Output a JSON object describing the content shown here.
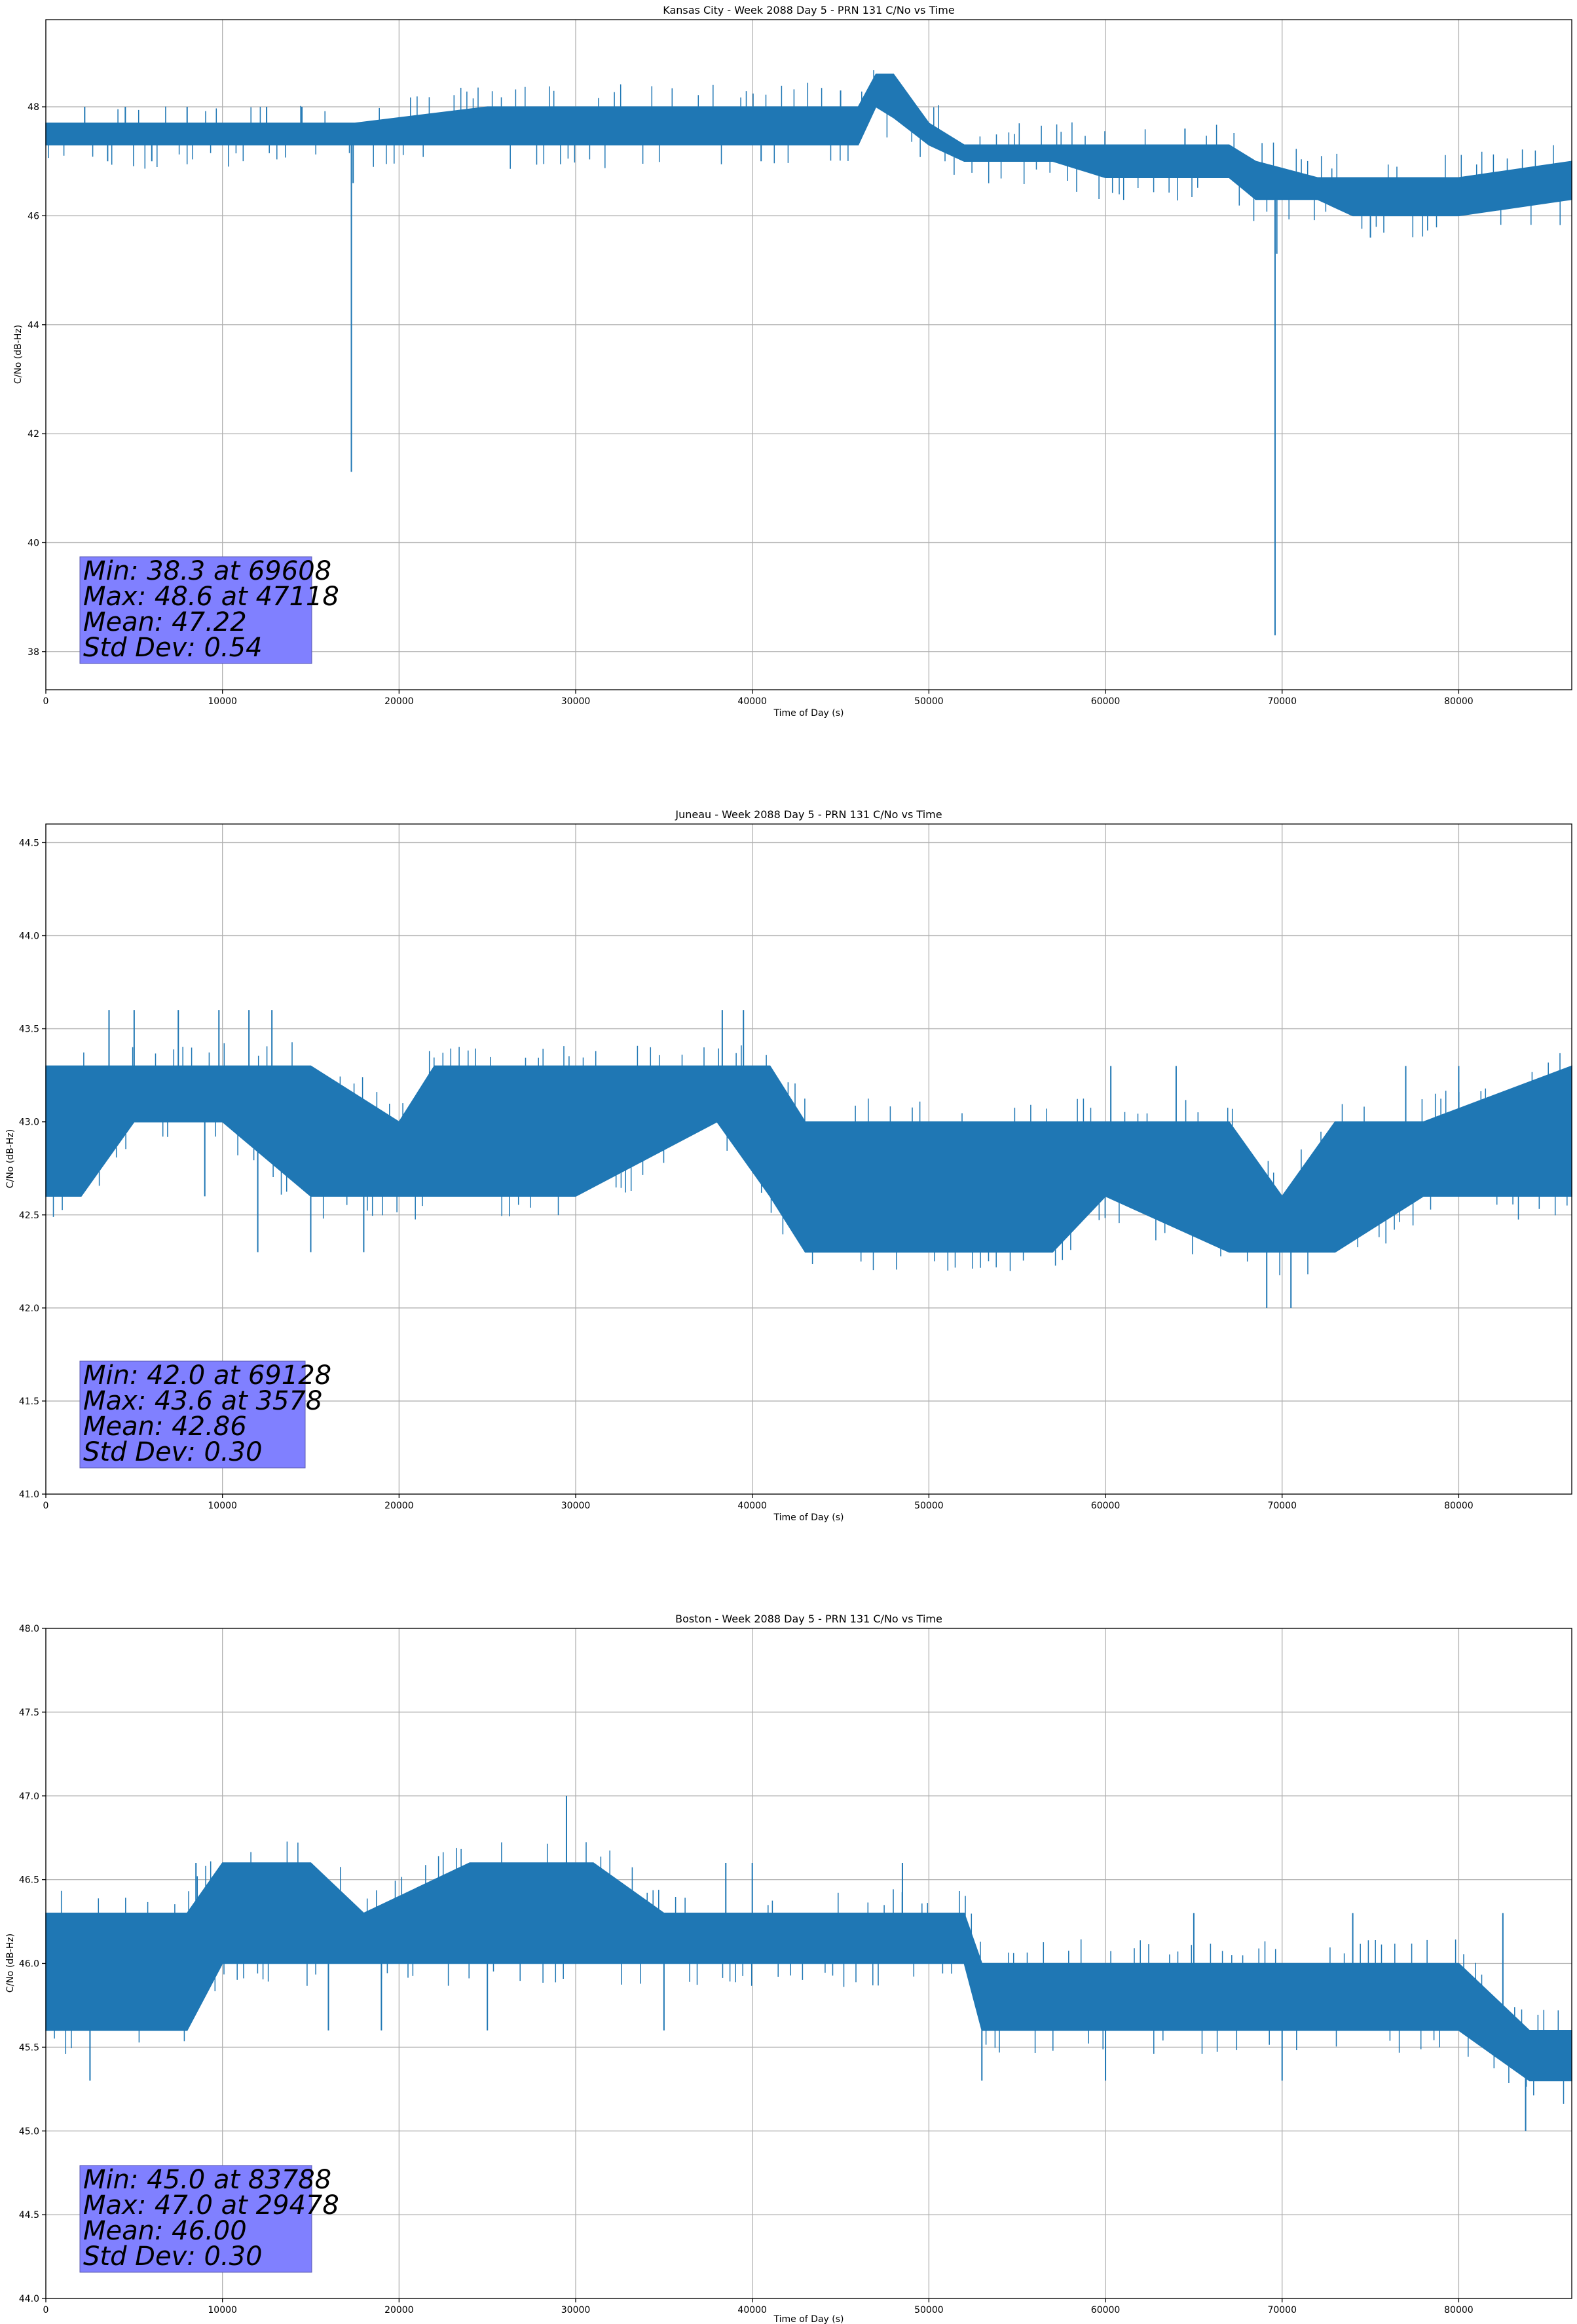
{
  "colors": {
    "series": "#1f77b4",
    "stats_box": "#8080ff",
    "grid": "#b0b0b0"
  },
  "chart_data": [
    {
      "type": "line",
      "title": "Kansas City - Week 2088 Day 5 - PRN 131 C/No vs Time",
      "xlabel": "Time of Day (s)",
      "ylabel": "C/No (dB-Hz)",
      "xlim": [
        0,
        86400
      ],
      "ylim": [
        37.3,
        49.6
      ],
      "xticks": [
        0,
        10000,
        20000,
        30000,
        40000,
        50000,
        60000,
        70000,
        80000
      ],
      "yticks": [
        38,
        40,
        42,
        44,
        46,
        48
      ],
      "ytick_labels": [
        "38",
        "40",
        "42",
        "44",
        "46",
        "48"
      ],
      "grid": true,
      "band": {
        "x": [
          0,
          17000,
          17500,
          25000,
          30000,
          40000,
          44000,
          46000,
          47000,
          48000,
          50000,
          52000,
          57000,
          60000,
          65000,
          67000,
          68500,
          72000,
          74000,
          80000,
          86400
        ],
        "low": [
          47.3,
          47.3,
          47.3,
          47.3,
          47.3,
          47.3,
          47.3,
          47.3,
          48.0,
          47.8,
          47.3,
          47.0,
          47.0,
          46.7,
          46.7,
          46.7,
          46.3,
          46.3,
          46.0,
          46.0,
          46.3
        ],
        "high": [
          47.7,
          47.7,
          47.7,
          48.0,
          48.0,
          48.0,
          48.0,
          48.0,
          48.6,
          48.6,
          47.7,
          47.3,
          47.3,
          47.3,
          47.3,
          47.3,
          47.0,
          46.7,
          46.7,
          46.7,
          47.0
        ]
      },
      "spikes_up": [
        [
          2200,
          48.0
        ],
        [
          4500,
          48.0
        ],
        [
          8000,
          48.0
        ],
        [
          12500,
          48.0
        ],
        [
          14500,
          48.0
        ],
        [
          45000,
          48.3
        ],
        [
          64500,
          47.6
        ]
      ],
      "spikes_down": [
        [
          3500,
          47.0
        ],
        [
          6000,
          47.0
        ],
        [
          17300,
          41.3
        ],
        [
          17400,
          46.6
        ],
        [
          40500,
          47.0
        ],
        [
          69600,
          38.3
        ],
        [
          69700,
          45.3
        ],
        [
          75000,
          45.6
        ]
      ],
      "stats": [
        "Min: 38.3 at 69608",
        "Max: 48.6 at 47118",
        "Mean: 47.22",
        "Std Dev: 0.54"
      ]
    },
    {
      "type": "line",
      "title": "Juneau - Week 2088 Day 5 - PRN 131 C/No vs Time",
      "xlabel": "Time of Day (s)",
      "ylabel": "C/No (dB-Hz)",
      "xlim": [
        0,
        86400
      ],
      "ylim": [
        41.0,
        44.6
      ],
      "xticks": [
        0,
        10000,
        20000,
        30000,
        40000,
        50000,
        60000,
        70000,
        80000
      ],
      "yticks": [
        41.0,
        41.5,
        42.0,
        42.5,
        43.0,
        43.5,
        44.0,
        44.5
      ],
      "ytick_labels": [
        "41.0",
        "41.5",
        "42.0",
        "42.5",
        "43.0",
        "43.5",
        "44.0",
        "44.5"
      ],
      "grid": true,
      "band": {
        "x": [
          0,
          2000,
          5000,
          10000,
          15000,
          20000,
          22000,
          30000,
          38000,
          41000,
          43000,
          45000,
          50000,
          57000,
          60000,
          67000,
          70000,
          73000,
          78000,
          86400
        ],
        "low": [
          42.6,
          42.6,
          43.0,
          43.0,
          42.6,
          42.6,
          42.6,
          42.6,
          43.0,
          42.6,
          42.3,
          42.3,
          42.3,
          42.3,
          42.6,
          42.3,
          42.3,
          42.3,
          42.6,
          42.6
        ],
        "high": [
          43.3,
          43.3,
          43.3,
          43.3,
          43.3,
          43.0,
          43.3,
          43.3,
          43.3,
          43.3,
          43.0,
          43.0,
          43.0,
          43.0,
          43.0,
          43.0,
          42.6,
          43.0,
          43.0,
          43.3
        ]
      },
      "spikes_up": [
        [
          3578,
          43.6
        ],
        [
          5000,
          43.6
        ],
        [
          7500,
          43.6
        ],
        [
          9800,
          43.6
        ],
        [
          11500,
          43.6
        ],
        [
          12800,
          43.6
        ],
        [
          38300,
          43.6
        ],
        [
          39500,
          43.6
        ],
        [
          60300,
          43.3
        ],
        [
          64000,
          43.3
        ],
        [
          77000,
          43.3
        ],
        [
          80000,
          43.3
        ]
      ],
      "spikes_down": [
        [
          9000,
          42.6
        ],
        [
          12000,
          42.3
        ],
        [
          15000,
          42.3
        ],
        [
          18000,
          42.3
        ],
        [
          46000,
          42.3
        ],
        [
          69128,
          42.0
        ],
        [
          70500,
          42.0
        ]
      ],
      "stats": [
        "Min: 42.0 at 69128",
        "Max: 43.6 at 3578",
        "Mean: 42.86",
        "Std Dev: 0.30"
      ]
    },
    {
      "type": "line",
      "title": "Boston - Week 2088 Day 5 - PRN 131 C/No vs Time",
      "xlabel": "Time of Day (s)",
      "ylabel": "C/No (dB-Hz)",
      "xlim": [
        0,
        86400
      ],
      "ylim": [
        44.0,
        48.0
      ],
      "xticks": [
        0,
        10000,
        20000,
        30000,
        40000,
        50000,
        60000,
        70000,
        80000
      ],
      "yticks": [
        44.0,
        44.5,
        45.0,
        45.5,
        46.0,
        46.5,
        47.0,
        47.5,
        48.0
      ],
      "ytick_labels": [
        "44.0",
        "44.5",
        "45.0",
        "45.5",
        "46.0",
        "46.5",
        "47.0",
        "47.5",
        "48.0"
      ],
      "grid": true,
      "band": {
        "x": [
          0,
          3000,
          5000,
          8000,
          10000,
          15000,
          18000,
          24000,
          29000,
          31000,
          35000,
          45000,
          52000,
          53000,
          58000,
          70000,
          80000,
          84000,
          86400
        ],
        "low": [
          45.6,
          45.6,
          45.6,
          45.6,
          46.0,
          46.0,
          46.0,
          46.0,
          46.0,
          46.0,
          46.0,
          46.0,
          46.0,
          45.6,
          45.6,
          45.6,
          45.6,
          45.3,
          45.3
        ],
        "high": [
          46.3,
          46.3,
          46.3,
          46.3,
          46.6,
          46.6,
          46.3,
          46.6,
          46.6,
          46.6,
          46.3,
          46.3,
          46.3,
          46.0,
          46.0,
          46.0,
          46.0,
          45.6,
          45.6
        ]
      },
      "spikes_up": [
        [
          8500,
          46.6
        ],
        [
          29478,
          47.0
        ],
        [
          38500,
          46.6
        ],
        [
          40000,
          46.6
        ],
        [
          48500,
          46.6
        ],
        [
          65000,
          46.3
        ],
        [
          74000,
          46.3
        ],
        [
          82500,
          46.3
        ]
      ],
      "spikes_down": [
        [
          2500,
          45.3
        ],
        [
          16000,
          45.6
        ],
        [
          19000,
          45.6
        ],
        [
          25000,
          45.6
        ],
        [
          35000,
          45.6
        ],
        [
          53000,
          45.3
        ],
        [
          60000,
          45.3
        ],
        [
          70000,
          45.3
        ],
        [
          83788,
          45.0
        ]
      ],
      "stats": [
        "Min: 45.0 at 83788",
        "Max: 47.0 at 29478",
        "Mean: 46.00",
        "Std Dev: 0.30"
      ]
    }
  ]
}
